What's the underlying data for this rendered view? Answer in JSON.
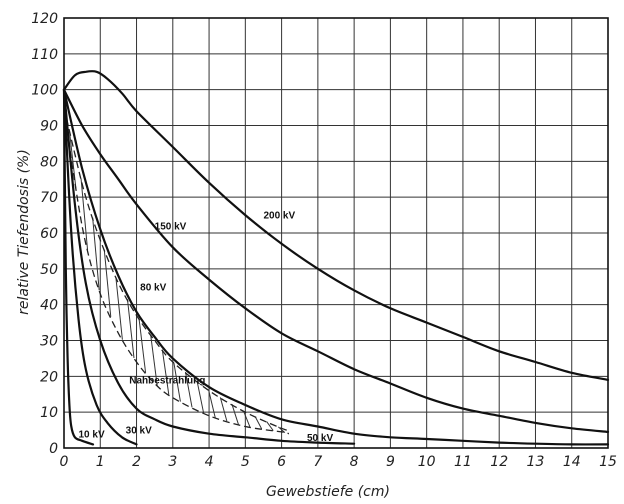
{
  "chart_data": {
    "type": "line",
    "title": "",
    "xlabel": "Gewebstiefe (cm)",
    "ylabel": "relative Tiefendosis (%)",
    "xlim": [
      0,
      15
    ],
    "ylim": [
      0,
      120
    ],
    "x_ticks": [
      0,
      1,
      2,
      3,
      4,
      5,
      6,
      7,
      8,
      9,
      10,
      11,
      12,
      13,
      14,
      15
    ],
    "y_ticks": [
      0,
      10,
      20,
      30,
      40,
      50,
      60,
      70,
      80,
      90,
      100,
      110,
      120
    ],
    "grid": true,
    "series": [
      {
        "name": "200 kV",
        "label_at": [
          5.5,
          64
        ],
        "x": [
          0,
          0.3,
          0.6,
          0.9,
          1.2,
          1.6,
          2,
          3,
          4,
          5,
          6,
          7,
          8,
          9,
          10,
          11,
          12,
          13,
          14,
          15
        ],
        "y": [
          100,
          104,
          105,
          105,
          103,
          99,
          94,
          84,
          74,
          65,
          57,
          50,
          44,
          39,
          35,
          31,
          27,
          24,
          21,
          19
        ]
      },
      {
        "name": "150 kV",
        "label_at": [
          2.5,
          61
        ],
        "x": [
          0,
          0.5,
          1,
          1.5,
          2,
          3,
          4,
          5,
          6,
          7,
          8,
          9,
          10,
          11,
          12,
          13,
          14,
          15
        ],
        "y": [
          100,
          90,
          82,
          75,
          68,
          56,
          47,
          39,
          32,
          27,
          22,
          18,
          14,
          11,
          9,
          7,
          5.5,
          4.5
        ]
      },
      {
        "name": "80 kV",
        "label_at": [
          2.1,
          44
        ],
        "x": [
          0,
          0.5,
          1,
          1.5,
          2,
          2.5,
          3,
          4,
          5,
          6,
          7,
          8,
          9,
          10,
          11,
          12,
          13,
          14,
          15
        ],
        "y": [
          100,
          78,
          61,
          48,
          38,
          31,
          25,
          17,
          12,
          8,
          6,
          4,
          3,
          2.5,
          2,
          1.5,
          1.2,
          1,
          1
        ]
      },
      {
        "name": "Nahbestrahlung",
        "label_at": [
          1.8,
          18
        ],
        "x": [
          0,
          0.5,
          1,
          1.5,
          2,
          2.5,
          3,
          4,
          5,
          6,
          7,
          8
        ],
        "y": [
          100,
          62,
          38,
          24,
          15,
          10,
          7,
          4,
          3,
          2,
          1.5,
          1.2
        ]
      },
      {
        "name": "50 kV",
        "label_at": [
          6.7,
          2
        ],
        "x": [
          0,
          0.3,
          0.6,
          1,
          1.5,
          2,
          2.5,
          3,
          4,
          5,
          6,
          7,
          8
        ],
        "y": [
          100,
          68,
          46,
          30,
          18,
          11,
          8,
          6,
          4,
          3,
          2,
          1.5,
          1.2
        ]
      },
      {
        "name": "30 kV",
        "label_at": [
          1.7,
          4
        ],
        "x": [
          0,
          0.2,
          0.4,
          0.6,
          0.9,
          1.2,
          1.6,
          2
        ],
        "y": [
          100,
          60,
          36,
          22,
          12,
          7,
          3,
          1
        ]
      },
      {
        "name": "10 kV",
        "label_at": [
          0.4,
          3
        ],
        "x": [
          0,
          0.05,
          0.1,
          0.15,
          0.2,
          0.3,
          0.5,
          0.8
        ],
        "y": [
          100,
          50,
          25,
          12,
          6,
          3,
          2,
          1
        ]
      }
    ],
    "band": {
      "name": "Nahbestrahlung",
      "upper": {
        "x": [
          0,
          0.3,
          0.6,
          1,
          1.5,
          2,
          2.5,
          3,
          4,
          5,
          6,
          6.2
        ],
        "y": [
          95,
          82,
          70,
          58,
          46,
          37,
          30,
          24,
          16,
          10,
          5.5,
          5
        ]
      },
      "lower": {
        "x": [
          0,
          0.3,
          0.6,
          1,
          1.5,
          2,
          2.5,
          3,
          4,
          5,
          6,
          6.2
        ],
        "y": [
          95,
          74,
          57,
          43,
          32,
          24,
          18,
          14,
          9,
          6,
          4.5,
          4
        ]
      }
    }
  }
}
